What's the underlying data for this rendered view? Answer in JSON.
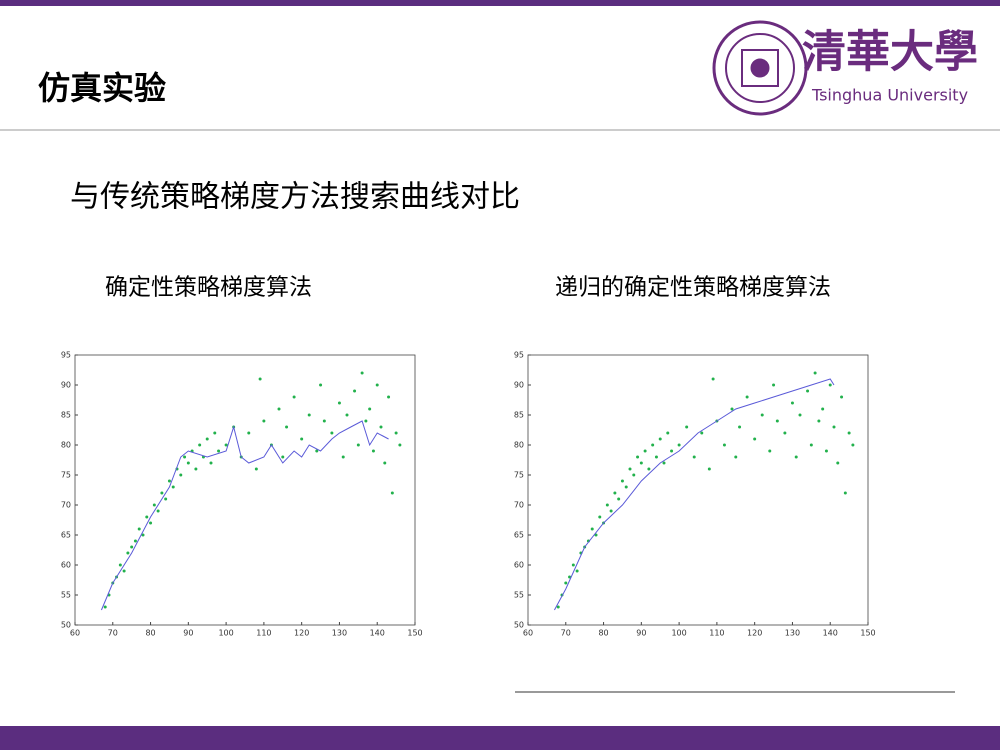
{
  "slide": {
    "title": "仿真实验",
    "logo_name": "清華大學",
    "logo_english": "Tsinghua University",
    "subtitle": "与传统策略梯度方法搜索曲线对比",
    "captions": [
      "确定性策略梯度算法",
      "递归的确定性策略梯度算法"
    ]
  },
  "chart_data": [
    {
      "type": "scatter",
      "xlim": [
        60,
        150
      ],
      "ylim": [
        50,
        95
      ],
      "xticks": [
        60,
        70,
        80,
        90,
        100,
        110,
        120,
        130,
        140,
        150
      ],
      "yticks": [
        50,
        55,
        60,
        65,
        70,
        75,
        80,
        85,
        90,
        95
      ],
      "series": [
        {
          "color": "#22b14c",
          "mode": "points",
          "x": [
            68,
            69,
            70,
            71,
            72,
            73,
            74,
            75,
            76,
            77,
            78,
            79,
            80,
            81,
            82,
            83,
            84,
            85,
            86,
            87,
            88,
            89,
            90,
            91,
            92,
            93,
            94,
            95,
            96,
            97,
            98,
            100,
            102,
            104,
            106,
            108,
            109,
            110,
            112,
            114,
            115,
            116,
            118,
            120,
            122,
            124,
            125,
            126,
            128,
            130,
            131,
            132,
            134,
            135,
            136,
            137,
            138,
            139,
            140,
            141,
            142,
            143,
            144,
            145,
            146
          ],
          "values": [
            53,
            55,
            57,
            58,
            60,
            59,
            62,
            63,
            64,
            66,
            65,
            68,
            67,
            70,
            69,
            72,
            71,
            74,
            73,
            76,
            75,
            78,
            77,
            79,
            76,
            80,
            78,
            81,
            77,
            82,
            79,
            80,
            83,
            78,
            82,
            76,
            91,
            84,
            80,
            86,
            78,
            83,
            88,
            81,
            85,
            79,
            90,
            84,
            82,
            87,
            78,
            85,
            89,
            80,
            92,
            84,
            86,
            79,
            90,
            83,
            77,
            88,
            72,
            82,
            80
          ]
        },
        {
          "color": "#5a5ad8",
          "mode": "line",
          "x": [
            67,
            70,
            75,
            80,
            85,
            88,
            90,
            95,
            100,
            102,
            104,
            106,
            110,
            112,
            115,
            118,
            120,
            122,
            125,
            128,
            130,
            133,
            136,
            138,
            140,
            143
          ],
          "values": [
            52.5,
            57,
            62,
            68,
            73,
            78,
            79,
            78,
            79,
            83,
            78,
            77,
            78,
            80,
            77,
            79,
            78,
            80,
            79,
            81,
            82,
            83,
            84,
            80,
            82,
            81
          ]
        }
      ]
    },
    {
      "type": "scatter",
      "xlim": [
        60,
        150
      ],
      "ylim": [
        50,
        95
      ],
      "xticks": [
        60,
        70,
        80,
        90,
        100,
        110,
        120,
        130,
        140,
        150
      ],
      "yticks": [
        50,
        55,
        60,
        65,
        70,
        75,
        80,
        85,
        90,
        95
      ],
      "series": [
        {
          "color": "#22b14c",
          "mode": "points",
          "x": [
            68,
            69,
            70,
            71,
            72,
            73,
            74,
            75,
            76,
            77,
            78,
            79,
            80,
            81,
            82,
            83,
            84,
            85,
            86,
            87,
            88,
            89,
            90,
            91,
            92,
            93,
            94,
            95,
            96,
            97,
            98,
            100,
            102,
            104,
            106,
            108,
            109,
            110,
            112,
            114,
            115,
            116,
            118,
            120,
            122,
            124,
            125,
            126,
            128,
            130,
            131,
            132,
            134,
            135,
            136,
            137,
            138,
            139,
            140,
            141,
            142,
            143,
            144,
            145,
            146
          ],
          "values": [
            53,
            55,
            57,
            58,
            60,
            59,
            62,
            63,
            64,
            66,
            65,
            68,
            67,
            70,
            69,
            72,
            71,
            74,
            73,
            76,
            75,
            78,
            77,
            79,
            76,
            80,
            78,
            81,
            77,
            82,
            79,
            80,
            83,
            78,
            82,
            76,
            91,
            84,
            80,
            86,
            78,
            83,
            88,
            81,
            85,
            79,
            90,
            84,
            82,
            87,
            78,
            85,
            89,
            80,
            92,
            84,
            86,
            79,
            90,
            83,
            77,
            88,
            72,
            82,
            80
          ]
        },
        {
          "color": "#5a5ad8",
          "mode": "line",
          "x": [
            67,
            70,
            75,
            80,
            85,
            90,
            95,
            100,
            105,
            110,
            115,
            120,
            125,
            130,
            135,
            140,
            141
          ],
          "values": [
            52.5,
            56,
            63,
            67,
            70,
            74,
            77,
            79,
            82,
            84,
            86,
            87,
            88,
            89,
            90,
            91,
            90
          ]
        }
      ]
    }
  ]
}
